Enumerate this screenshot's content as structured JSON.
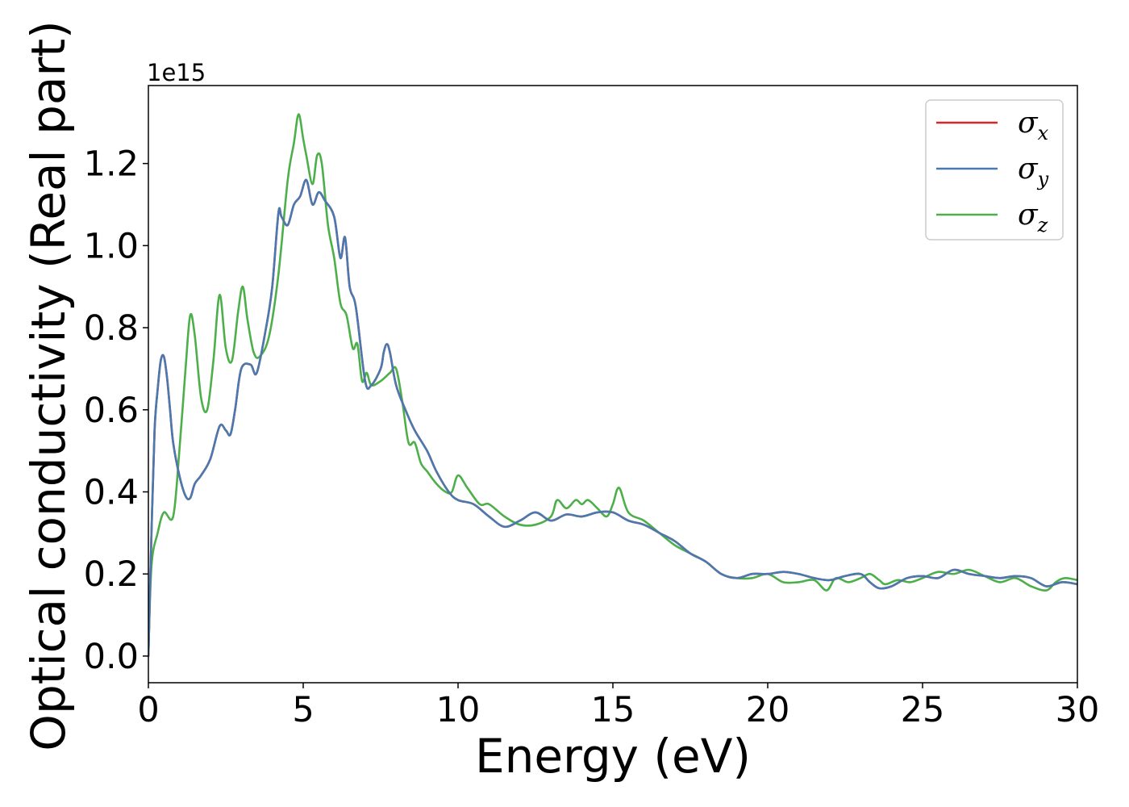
{
  "chart_data": {
    "type": "line",
    "xlabel": "Energy (eV)",
    "ylabel": "Optical conductivity (Real part)",
    "y_offset_label": "1e15",
    "y_scale": 1000000000000000.0,
    "xlim": [
      0,
      30
    ],
    "ylim": [
      -0.065,
      1.39
    ],
    "x_ticks": [
      0,
      5,
      10,
      15,
      20,
      25,
      30
    ],
    "y_ticks": [
      0.0,
      0.2,
      0.4,
      0.6,
      0.8,
      1.0,
      1.2
    ],
    "grid": false,
    "legend_position": "top-right",
    "legend": [
      {
        "symbol": "σ",
        "sub": "x",
        "color": "#d62728"
      },
      {
        "symbol": "σ",
        "sub": "y",
        "color": "#4a79b0"
      },
      {
        "symbol": "σ",
        "sub": "z",
        "color": "#4daf4a"
      }
    ],
    "series": [
      {
        "key": "sigma_x",
        "color": "#d62728",
        "x": [
          0,
          0.1,
          0.2,
          0.3,
          0.4,
          0.5,
          0.6,
          0.7,
          0.8,
          1.0,
          1.2,
          1.35,
          1.5,
          1.7,
          2.0,
          2.3,
          2.5,
          2.65,
          2.8,
          3.0,
          3.3,
          3.5,
          3.8,
          4.0,
          4.2,
          4.3,
          4.5,
          4.7,
          4.9,
          5.1,
          5.3,
          5.5,
          5.7,
          6.0,
          6.2,
          6.35,
          6.5,
          6.7,
          7.0,
          7.2,
          7.5,
          7.6,
          7.7,
          7.8,
          8.0,
          8.3,
          8.6,
          9.0,
          9.3,
          9.7,
          10.0,
          10.5,
          11.0,
          11.5,
          12.0,
          12.5,
          13.0,
          13.5,
          14.0,
          14.5,
          15.0,
          15.5,
          16.0,
          16.5,
          17.0,
          17.5,
          18.0,
          18.5,
          19.0,
          19.5,
          20.0,
          20.5,
          21.0,
          21.5,
          22.0,
          22.5,
          23.0,
          23.3,
          23.6,
          24.0,
          24.5,
          25.0,
          25.5,
          26.0,
          26.5,
          27.0,
          27.5,
          28.0,
          28.5,
          29.0,
          29.5,
          30.0
        ],
        "y": [
          0.0,
          0.3,
          0.55,
          0.65,
          0.72,
          0.73,
          0.68,
          0.6,
          0.52,
          0.44,
          0.39,
          0.385,
          0.42,
          0.44,
          0.48,
          0.56,
          0.55,
          0.54,
          0.6,
          0.7,
          0.71,
          0.69,
          0.8,
          0.9,
          1.08,
          1.07,
          1.05,
          1.1,
          1.12,
          1.16,
          1.1,
          1.13,
          1.11,
          1.07,
          0.97,
          1.02,
          0.9,
          0.85,
          0.67,
          0.66,
          0.7,
          0.74,
          0.76,
          0.74,
          0.66,
          0.6,
          0.55,
          0.5,
          0.45,
          0.4,
          0.38,
          0.37,
          0.34,
          0.315,
          0.33,
          0.35,
          0.33,
          0.345,
          0.34,
          0.35,
          0.35,
          0.33,
          0.32,
          0.3,
          0.28,
          0.25,
          0.23,
          0.2,
          0.19,
          0.2,
          0.2,
          0.205,
          0.2,
          0.19,
          0.185,
          0.195,
          0.2,
          0.18,
          0.165,
          0.17,
          0.19,
          0.195,
          0.19,
          0.21,
          0.2,
          0.195,
          0.19,
          0.195,
          0.19,
          0.17,
          0.18,
          0.175
        ]
      },
      {
        "key": "sigma_y",
        "color": "#4a79b0",
        "x": [
          0,
          0.1,
          0.2,
          0.3,
          0.4,
          0.5,
          0.6,
          0.7,
          0.8,
          1.0,
          1.2,
          1.35,
          1.5,
          1.7,
          2.0,
          2.3,
          2.5,
          2.65,
          2.8,
          3.0,
          3.3,
          3.5,
          3.8,
          4.0,
          4.2,
          4.3,
          4.5,
          4.7,
          4.9,
          5.1,
          5.3,
          5.5,
          5.7,
          6.0,
          6.2,
          6.35,
          6.5,
          6.7,
          7.0,
          7.2,
          7.5,
          7.6,
          7.7,
          7.8,
          8.0,
          8.3,
          8.6,
          9.0,
          9.3,
          9.7,
          10.0,
          10.5,
          11.0,
          11.5,
          12.0,
          12.5,
          13.0,
          13.5,
          14.0,
          14.5,
          15.0,
          15.5,
          16.0,
          16.5,
          17.0,
          17.5,
          18.0,
          18.5,
          19.0,
          19.5,
          20.0,
          20.5,
          21.0,
          21.5,
          22.0,
          22.5,
          23.0,
          23.3,
          23.6,
          24.0,
          24.5,
          25.0,
          25.5,
          26.0,
          26.5,
          27.0,
          27.5,
          28.0,
          28.5,
          29.0,
          29.5,
          30.0
        ],
        "y": [
          0.0,
          0.3,
          0.55,
          0.65,
          0.72,
          0.73,
          0.68,
          0.6,
          0.52,
          0.44,
          0.39,
          0.385,
          0.42,
          0.44,
          0.48,
          0.56,
          0.55,
          0.54,
          0.6,
          0.7,
          0.71,
          0.69,
          0.8,
          0.9,
          1.08,
          1.07,
          1.05,
          1.1,
          1.12,
          1.16,
          1.1,
          1.13,
          1.11,
          1.07,
          0.97,
          1.02,
          0.9,
          0.85,
          0.67,
          0.66,
          0.7,
          0.74,
          0.76,
          0.74,
          0.66,
          0.6,
          0.55,
          0.5,
          0.45,
          0.4,
          0.38,
          0.37,
          0.34,
          0.315,
          0.33,
          0.35,
          0.33,
          0.345,
          0.34,
          0.35,
          0.35,
          0.33,
          0.32,
          0.3,
          0.28,
          0.25,
          0.23,
          0.2,
          0.19,
          0.2,
          0.2,
          0.205,
          0.2,
          0.19,
          0.185,
          0.195,
          0.2,
          0.18,
          0.165,
          0.17,
          0.19,
          0.195,
          0.19,
          0.21,
          0.2,
          0.195,
          0.19,
          0.195,
          0.19,
          0.17,
          0.18,
          0.175
        ]
      },
      {
        "key": "sigma_z",
        "color": "#4daf4a",
        "x": [
          0,
          0.1,
          0.3,
          0.5,
          0.8,
          1.0,
          1.2,
          1.35,
          1.5,
          1.7,
          1.9,
          2.1,
          2.3,
          2.5,
          2.7,
          2.9,
          3.05,
          3.2,
          3.4,
          3.6,
          3.9,
          4.2,
          4.5,
          4.7,
          4.85,
          5.0,
          5.1,
          5.3,
          5.45,
          5.6,
          5.8,
          6.0,
          6.2,
          6.4,
          6.6,
          6.75,
          6.9,
          7.05,
          7.2,
          7.5,
          7.8,
          8.0,
          8.2,
          8.4,
          8.6,
          8.8,
          9.0,
          9.3,
          9.6,
          9.8,
          10.0,
          10.3,
          10.7,
          11.0,
          11.5,
          12.0,
          12.5,
          13.0,
          13.2,
          13.5,
          13.8,
          14.0,
          14.2,
          14.5,
          14.8,
          15.0,
          15.2,
          15.5,
          16.0,
          16.5,
          17.0,
          17.5,
          18.0,
          18.5,
          19.0,
          19.5,
          20.0,
          20.5,
          21.0,
          21.5,
          21.9,
          22.2,
          22.6,
          23.0,
          23.3,
          23.6,
          23.8,
          24.2,
          24.6,
          25.0,
          25.5,
          26.0,
          26.5,
          27.0,
          27.5,
          28.0,
          28.5,
          29.0,
          29.3,
          29.6,
          30.0
        ],
        "y": [
          0.0,
          0.22,
          0.3,
          0.35,
          0.34,
          0.5,
          0.7,
          0.83,
          0.78,
          0.63,
          0.6,
          0.72,
          0.88,
          0.75,
          0.72,
          0.84,
          0.9,
          0.82,
          0.74,
          0.73,
          0.78,
          0.93,
          1.16,
          1.25,
          1.32,
          1.26,
          1.22,
          1.15,
          1.22,
          1.2,
          1.05,
          0.97,
          0.86,
          0.83,
          0.75,
          0.76,
          0.67,
          0.69,
          0.66,
          0.67,
          0.69,
          0.7,
          0.62,
          0.52,
          0.52,
          0.47,
          0.45,
          0.42,
          0.4,
          0.4,
          0.44,
          0.41,
          0.37,
          0.37,
          0.34,
          0.32,
          0.32,
          0.34,
          0.38,
          0.36,
          0.38,
          0.37,
          0.38,
          0.36,
          0.34,
          0.37,
          0.41,
          0.35,
          0.33,
          0.3,
          0.27,
          0.25,
          0.23,
          0.2,
          0.19,
          0.19,
          0.2,
          0.18,
          0.18,
          0.185,
          0.16,
          0.19,
          0.18,
          0.19,
          0.2,
          0.185,
          0.175,
          0.185,
          0.18,
          0.19,
          0.205,
          0.2,
          0.21,
          0.195,
          0.18,
          0.19,
          0.17,
          0.16,
          0.18,
          0.19,
          0.185
        ]
      }
    ]
  }
}
